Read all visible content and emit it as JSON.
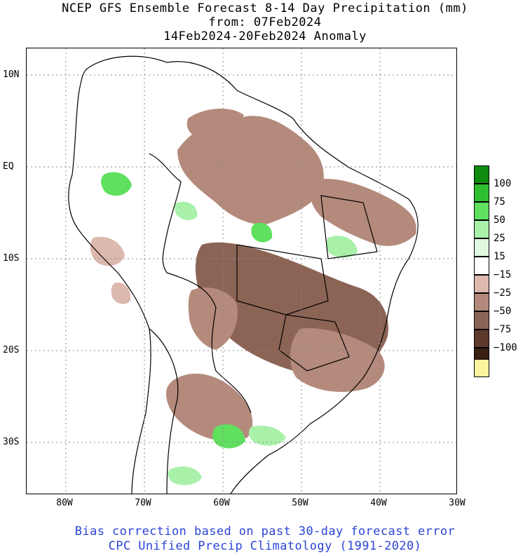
{
  "title": {
    "line1": "NCEP GFS Ensemble Forecast 8-14 Day Precipitation (mm)",
    "line2": "from: 07Feb2024",
    "line3": "14Feb2024-20Feb2024 Anomaly"
  },
  "axes": {
    "lat_labels": [
      "10N",
      "EQ",
      "10S",
      "20S",
      "30S"
    ],
    "lon_labels": [
      "80W",
      "70W",
      "60W",
      "50W",
      "40W",
      "30W"
    ],
    "lat_range": [
      -35.5,
      12.5
    ],
    "lon_range": [
      -85,
      -30
    ],
    "grid": true
  },
  "legend": {
    "entries": [
      {
        "label": "100",
        "color": "#0f8c0f"
      },
      {
        "label": "75",
        "color": "#2fbf2f"
      },
      {
        "label": "50",
        "color": "#5fe05f"
      },
      {
        "label": "25",
        "color": "#a9f0a9"
      },
      {
        "label": "15",
        "color": "#dff8df"
      },
      {
        "label": "",
        "color": "#ffffff"
      },
      {
        "label": "−15",
        "color": "#dcb8ad"
      },
      {
        "label": "−25",
        "color": "#b48a7c"
      },
      {
        "label": "−50",
        "color": "#8c6455"
      },
      {
        "label": "−75",
        "color": "#5e3a2c"
      },
      {
        "label": "−100",
        "color": "#3a1f14"
      },
      {
        "label": "",
        "color": "#fff3a0"
      }
    ]
  },
  "footer": {
    "line1": "Bias correction based on past 30-day forecast error",
    "line2": "CPC Unified Precip Climatology (1991-2020)"
  },
  "colors": {
    "dry_light": "#dcb8ad",
    "dry_mid": "#b48a7c",
    "dry_dark": "#8c6455",
    "wet_light": "#a9f0a9",
    "wet_mid": "#5fe05f",
    "footer_text": "#2b44d6"
  }
}
